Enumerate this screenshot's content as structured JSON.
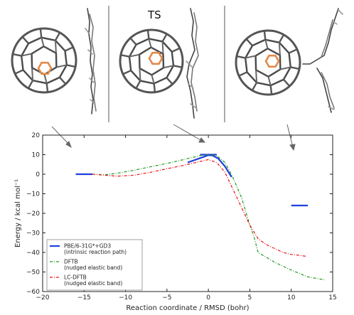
{
  "top_panel": {
    "ts_label": "TS"
  },
  "chart_data": {
    "type": "line",
    "title": "",
    "xlabel": "Reaction coordinate / RMSD (bohr)",
    "ylabel": "Energy / kcal mol⁻¹",
    "xlim": [
      -20,
      15
    ],
    "ylim": [
      -60,
      20
    ],
    "xticks": [
      -20,
      -15,
      -10,
      -5,
      0,
      5,
      10,
      15
    ],
    "yticks": [
      -60,
      -50,
      -40,
      -30,
      -20,
      -10,
      0,
      10,
      20
    ],
    "grid": false,
    "legend_position": "lower-left",
    "series": [
      {
        "name": "PBE/6-31G*+GD3",
        "name_line2": "(intrinsic reaction path)",
        "color": "#1f3fe0",
        "style": "solid",
        "segments": [
          [
            [
              -16.0,
              0.0
            ],
            [
              -14.0,
              0.0
            ]
          ],
          [
            [
              -2.5,
              6.0
            ],
            [
              -1.5,
              7.5
            ],
            [
              -0.5,
              9.0
            ],
            [
              0.0,
              9.8
            ],
            [
              0.5,
              9.6
            ],
            [
              1.2,
              8.0
            ],
            [
              2.0,
              4.0
            ],
            [
              2.8,
              -1.5
            ]
          ],
          [
            [
              -1.0,
              10.0
            ],
            [
              1.0,
              10.0
            ]
          ],
          [
            [
              10.0,
              -16.0
            ],
            [
              12.0,
              -16.0
            ]
          ]
        ]
      },
      {
        "name": "DFTB",
        "name_line2": "(nudged elastic band)",
        "color": "#229922",
        "style": "dash-dot",
        "points": [
          [
            -14.0,
            0.0
          ],
          [
            -12.5,
            -0.3
          ],
          [
            -11.0,
            0.5
          ],
          [
            -9.0,
            2.0
          ],
          [
            -7.0,
            3.8
          ],
          [
            -5.0,
            5.5
          ],
          [
            -3.0,
            7.5
          ],
          [
            -1.0,
            9.5
          ],
          [
            0.0,
            10.0
          ],
          [
            1.0,
            9.5
          ],
          [
            2.0,
            6.0
          ],
          [
            3.0,
            -2.0
          ],
          [
            4.0,
            -12.0
          ],
          [
            5.0,
            -26.0
          ],
          [
            5.5,
            -32.0
          ],
          [
            6.0,
            -40.0
          ],
          [
            8.0,
            -45.0
          ],
          [
            10.0,
            -49.0
          ],
          [
            12.0,
            -52.5
          ],
          [
            14.0,
            -54.0
          ]
        ]
      },
      {
        "name": "LC-DFTB",
        "name_line2": "(nudged elastic band)",
        "color": "#ee1111",
        "style": "dash-dot",
        "points": [
          [
            -14.0,
            0.0
          ],
          [
            -12.5,
            -0.5
          ],
          [
            -11.0,
            -1.0
          ],
          [
            -9.0,
            -0.5
          ],
          [
            -7.0,
            1.0
          ],
          [
            -5.0,
            2.8
          ],
          [
            -3.0,
            4.5
          ],
          [
            -1.0,
            6.5
          ],
          [
            0.0,
            7.5
          ],
          [
            1.0,
            6.0
          ],
          [
            2.0,
            1.0
          ],
          [
            3.0,
            -8.0
          ],
          [
            4.0,
            -17.0
          ],
          [
            5.0,
            -26.0
          ],
          [
            6.0,
            -33.0
          ],
          [
            7.0,
            -36.0
          ],
          [
            8.0,
            -38.0
          ],
          [
            9.0,
            -40.0
          ],
          [
            10.0,
            -41.0
          ],
          [
            11.0,
            -41.5
          ],
          [
            11.8,
            -42.0
          ]
        ]
      }
    ]
  }
}
